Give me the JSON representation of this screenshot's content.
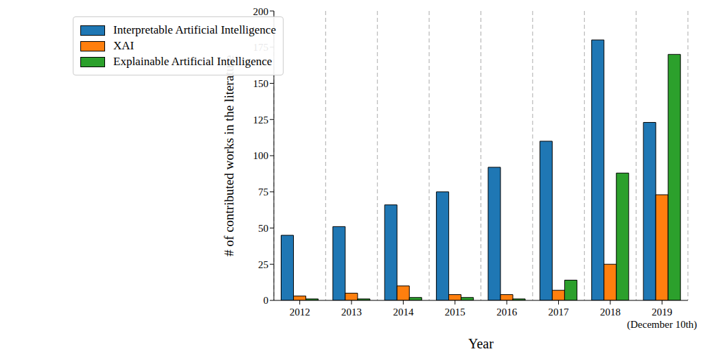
{
  "chart_data": {
    "type": "bar",
    "x_label": "Year",
    "y_label": "# of contributed works in the literature",
    "categories": [
      "2012",
      "2013",
      "2014",
      "2015",
      "2016",
      "2017",
      "2018",
      "2019\n(December 10th)"
    ],
    "series": [
      {
        "name": "Interpretable Artificial Intelligence",
        "color": "#1f77b4",
        "values": [
          45,
          51,
          66,
          75,
          92,
          110,
          180,
          123
        ]
      },
      {
        "name": "XAI",
        "color": "#ff7f0e",
        "values": [
          3,
          5,
          10,
          4,
          4,
          7,
          25,
          73
        ]
      },
      {
        "name": "Explainable Artificial Intelligence",
        "color": "#2ca02c",
        "values": [
          1,
          1,
          2,
          2,
          1,
          14,
          88,
          170
        ]
      }
    ],
    "ylim": [
      0,
      200
    ],
    "yticks": [
      0,
      25,
      50,
      75,
      100,
      125,
      150,
      175,
      200
    ],
    "grid": true,
    "legend": "upper left"
  }
}
